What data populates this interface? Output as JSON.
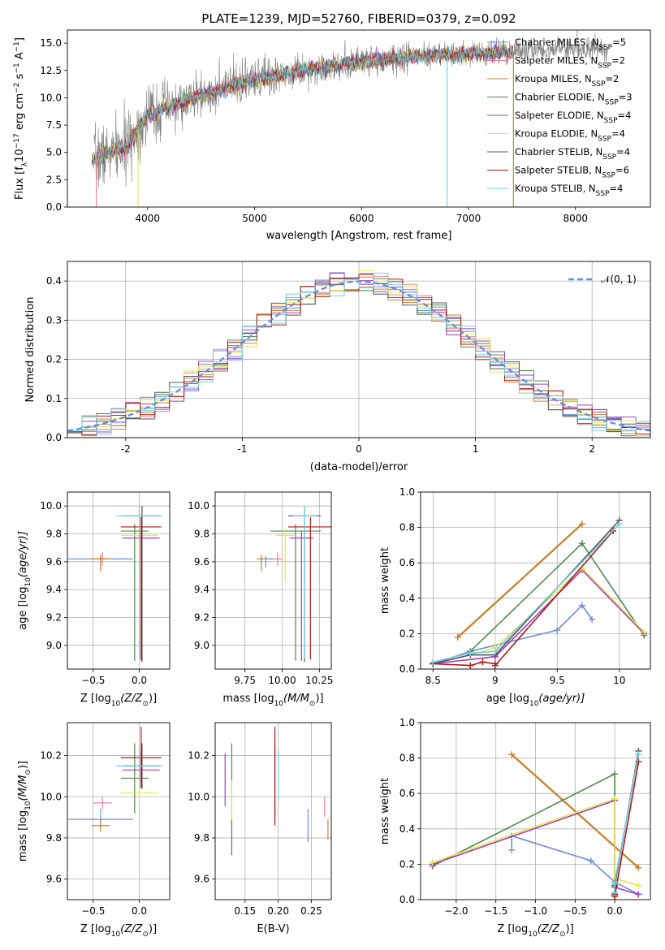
{
  "title": "PLATE=1239, MJD=52760, FIBERID=0379, z=0.092",
  "series": [
    {
      "name": "Chabrier MILES, N$_{SSP}$=5",
      "label_main": "Chabrier MILES, N",
      "label_sub": "SSP",
      "label_tail": "=5",
      "color": "#6b8ed6"
    },
    {
      "name": "Salpeter MILES, N$_{SSP}$=2",
      "label_main": "Salpeter MILES, N",
      "label_sub": "SSP",
      "label_tail": "=2",
      "color": "#f27f9a"
    },
    {
      "name": "Kroupa MILES, N$_{SSP}$=2",
      "label_main": "Kroupa MILES, N",
      "label_sub": "SSP",
      "label_tail": "=2",
      "color": "#c8842c"
    },
    {
      "name": "Chabrier ELODIE, N$_{SSP}$=3",
      "label_main": "Chabrier ELODIE, N",
      "label_sub": "SSP",
      "label_tail": "=3",
      "color": "#4d8a4d"
    },
    {
      "name": "Salpeter ELODIE, N$_{SSP}$=4",
      "label_main": "Salpeter ELODIE, N",
      "label_sub": "SSP",
      "label_tail": "=4",
      "color": "#a23cc4"
    },
    {
      "name": "Kroupa ELODIE, N$_{SSP}$=4",
      "label_main": "Kroupa ELODIE, N",
      "label_sub": "SSP",
      "label_tail": "=4",
      "color": "#e6e650"
    },
    {
      "name": "Chabrier STELIB, N$_{SSP}$=4",
      "label_main": "Chabrier STELIB, N",
      "label_sub": "SSP",
      "label_tail": "=4",
      "color": "#555555"
    },
    {
      "name": "Salpeter STELIB, N$_{SSP}$=6",
      "label_main": "Salpeter STELIB, N",
      "label_sub": "SSP",
      "label_tail": "=6",
      "color": "#b01818"
    },
    {
      "name": "Kroupa STELIB, N$_{SSP}$=4",
      "label_main": "Kroupa STELIB, N",
      "label_sub": "SSP",
      "label_tail": "=4",
      "color": "#6fd0e0"
    }
  ],
  "panel_spectrum": {
    "xlabel": "wavelength [Angstrom, rest frame]",
    "ylabel": "Flux [fλ10⁻¹⁷ erg cm⁻² s⁻¹ A⁻¹]",
    "ylabel_parts": {
      "a": "Flux [f",
      "b": "λ",
      "c": "10",
      "d": "−17",
      "e": " erg cm",
      "f": "−2",
      "g": " s",
      "h": "−1",
      "i": " A",
      "j": "−1",
      "k": "]"
    },
    "xlim": [
      3250,
      8700
    ],
    "ylim": [
      0,
      16.2
    ],
    "xticks": [
      4000,
      5000,
      6000,
      7000,
      8000
    ],
    "yticks": [
      0.0,
      2.5,
      5.0,
      7.5,
      10.0,
      12.5,
      15.0
    ],
    "data_color": "#808080",
    "data_x_range": [
      3500,
      8300
    ],
    "model_x_range": [
      3480,
      7420
    ],
    "continuum_anchors": [
      [
        3480,
        4.4
      ],
      [
        3800,
        5.5
      ],
      [
        4000,
        8.5
      ],
      [
        4500,
        10.2
      ],
      [
        5000,
        11.6
      ],
      [
        5500,
        12.6
      ],
      [
        6000,
        13.3
      ],
      [
        6500,
        13.8
      ],
      [
        7000,
        14.0
      ],
      [
        7500,
        14.3
      ],
      [
        8000,
        14.6
      ],
      [
        8300,
        14.5
      ]
    ]
  },
  "panel_hist": {
    "xlabel": "(data-model)/error",
    "ylabel": "Normed distribution",
    "xlim": [
      -2.5,
      2.5
    ],
    "ylim": [
      0,
      0.45
    ],
    "xticks": [
      -2,
      -1,
      0,
      1,
      2
    ],
    "yticks": [
      0.0,
      0.1,
      0.2,
      0.3,
      0.4
    ],
    "grid": true,
    "bins": 40,
    "normal_label": "𝒩(0, 1)",
    "normal_color": "#6a8fd8"
  },
  "panel_age_Z": {
    "xlabel": "Z [log₁₀(Z/Z⊙)]",
    "xlabel_parts": {
      "a": "Z [log",
      "b": "10",
      "c": "(Z/Z",
      "d": "⊙",
      "e": ")]"
    },
    "ylabel": "age  [log₁₀(age/yr)]",
    "ylabel_parts": {
      "a": "age  [log",
      "b": "10",
      "c": "(age/yr)]"
    },
    "xlim": [
      -0.78,
      0.33
    ],
    "ylim": [
      8.83,
      10.1
    ],
    "xticks": [
      -0.5,
      0.0
    ],
    "xtick_labels": [
      "−0.5",
      "0.0"
    ],
    "yticks": [
      9.0,
      9.2,
      9.4,
      9.6,
      9.8,
      10.0
    ],
    "grid": true
  },
  "panel_age_mass": {
    "xlabel": "mass [log₁₀(M/M⊙)]",
    "xlabel_parts": {
      "a": "mass [log",
      "b": "10",
      "c": "(M/M",
      "d": "⊙",
      "e": ")]"
    },
    "xlim": [
      9.55,
      10.33
    ],
    "ylim": [
      8.83,
      10.1
    ],
    "xticks": [
      9.75,
      10.0,
      10.25
    ],
    "xtick_labels": [
      "9.75",
      "10.00",
      "10.25"
    ],
    "yticks": [
      9.0,
      9.2,
      9.4,
      9.6,
      9.8,
      10.0
    ],
    "grid": true
  },
  "panel_mw_age": {
    "xlabel": "age  [log₁₀(age/yr)]",
    "xlabel_parts": {
      "a": "age  [log",
      "b": "10",
      "c": "(age/yr)]"
    },
    "ylabel": "mass weight",
    "xlim": [
      8.4,
      10.25
    ],
    "ylim": [
      0,
      1.0
    ],
    "xticks": [
      8.5,
      9.0,
      9.5,
      10.0
    ],
    "yticks": [
      0.0,
      0.2,
      0.4,
      0.6,
      0.8,
      1.0
    ],
    "grid": true
  },
  "panel_mass_Z": {
    "xlabel": "Z [log₁₀(Z/Z⊙)]",
    "xlabel_parts": {
      "a": "Z [log",
      "b": "10",
      "c": "(Z/Z",
      "d": "⊙",
      "e": ")]"
    },
    "ylabel": "mass [log₁₀(M/M⊙)]",
    "ylabel_parts": {
      "a": "mass [log",
      "b": "10",
      "c": "(M/M",
      "d": "⊙",
      "e": ")]"
    },
    "xlim": [
      -0.78,
      0.33
    ],
    "ylim": [
      9.5,
      10.36
    ],
    "xticks": [
      -0.5,
      0.0
    ],
    "xtick_labels": [
      "−0.5",
      "0.0"
    ],
    "yticks": [
      9.6,
      9.8,
      10.0,
      10.2
    ],
    "grid": true
  },
  "panel_mass_EBV": {
    "xlabel": "E(B-V)",
    "xlim": [
      0.105,
      0.28
    ],
    "ylim": [
      9.5,
      10.36
    ],
    "xticks": [
      0.15,
      0.2,
      0.25
    ],
    "xtick_labels": [
      "0.15",
      "0.20",
      "0.25"
    ],
    "yticks": [
      9.6,
      9.8,
      10.0,
      10.2
    ],
    "grid": true
  },
  "panel_mw_Z": {
    "xlabel": "Z [log₁₀(Z/Z⊙)]",
    "xlabel_parts": {
      "a": "Z [log",
      "b": "10",
      "c": "(Z/Z",
      "d": "⊙",
      "e": ")]"
    },
    "ylabel": "mass weight",
    "xlim": [
      -2.45,
      0.45
    ],
    "ylim": [
      0,
      1.0
    ],
    "xticks": [
      -2.0,
      -1.5,
      -1.0,
      -0.5,
      0.0
    ],
    "xtick_labels": [
      "−2.0",
      "−1.5",
      "−1.0",
      "−0.5",
      "0.0"
    ],
    "yticks": [
      0.0,
      0.2,
      0.4,
      0.6,
      0.8,
      1.0
    ],
    "grid": true
  },
  "chart_data": {
    "type": "scatter",
    "title": "PLATE=1239, MJD=52760, FIBERID=0379, z=0.092",
    "ssp_fits": [
      {
        "series": "Chabrier MILES",
        "age": [
          8.5,
          8.8,
          9.5,
          9.7,
          9.78
        ],
        "mass_weight": [
          0.03,
          0.1,
          0.22,
          0.36,
          0.28
        ],
        "Z": [
          0.3,
          0.0,
          -0.3,
          -1.3,
          -1.3
        ]
      },
      {
        "series": "Salpeter MILES",
        "age": [
          8.7,
          9.7
        ],
        "mass_weight": [
          0.18,
          0.82
        ],
        "Z": [
          0.3,
          -1.3
        ]
      },
      {
        "series": "Kroupa MILES",
        "age": [
          8.7,
          9.7
        ],
        "mass_weight": [
          0.18,
          0.82
        ],
        "Z": [
          0.3,
          -1.3
        ]
      },
      {
        "series": "Chabrier ELODIE",
        "age": [
          8.8,
          9.7,
          10.2
        ],
        "mass_weight": [
          0.1,
          0.71,
          0.19
        ],
        "Z": [
          0.0,
          0.0,
          -2.3
        ]
      },
      {
        "series": "Salpeter ELODIE",
        "age": [
          8.5,
          9.0,
          9.7,
          10.2
        ],
        "mass_weight": [
          0.03,
          0.07,
          0.56,
          0.2
        ],
        "Z": [
          0.3,
          0.0,
          0.0,
          -2.3
        ]
      },
      {
        "series": "Kroupa ELODIE",
        "age": [
          8.8,
          9.0,
          9.7,
          10.2
        ],
        "mass_weight": [
          0.08,
          0.12,
          0.57,
          0.21
        ],
        "Z": [
          0.3,
          0.0,
          0.0,
          -2.3
        ]
      },
      {
        "series": "Chabrier STELIB",
        "age": [
          8.5,
          8.8,
          9.0,
          10.0
        ],
        "mass_weight": [
          0.03,
          0.08,
          0.08,
          0.84
        ],
        "Z": [
          0.0,
          0.0,
          0.0,
          0.3
        ]
      },
      {
        "series": "Salpeter STELIB",
        "age": [
          8.5,
          8.8,
          8.9,
          9.0,
          9.0,
          9.95
        ],
        "mass_weight": [
          0.03,
          0.02,
          0.04,
          0.03,
          0.02,
          0.78
        ],
        "Z": [
          0.0,
          0.0,
          0.0,
          0.0,
          0.0,
          0.3
        ]
      },
      {
        "series": "Kroupa STELIB",
        "age": [
          8.5,
          8.8,
          9.0,
          10.0
        ],
        "mass_weight": [
          0.04,
          0.09,
          0.1,
          0.82
        ],
        "Z": [
          0.0,
          0.0,
          0.0,
          0.3
        ]
      }
    ],
    "average_properties": [
      {
        "series": "Chabrier MILES",
        "Z": -0.42,
        "Z_err": 0.35,
        "age": 9.62,
        "age_err": [
          0.06,
          0.02
        ],
        "mass": 9.89,
        "mass_err": 0.05,
        "ebv": 0.245,
        "ebv_err": 0.12
      },
      {
        "series": "Salpeter MILES",
        "Z": -0.4,
        "Z_err": 0.1,
        "age": 9.62,
        "age_err": [
          0.05,
          0.05
        ],
        "mass": 9.97,
        "mass_err": 0.03,
        "ebv": 0.27,
        "ebv_err": 0.15
      },
      {
        "series": "Kroupa MILES",
        "Z": -0.42,
        "Z_err": 0.1,
        "age": 9.62,
        "age_err": [
          0.09,
          0.03
        ],
        "mass": 9.86,
        "mass_err": 0.03,
        "ebv": 0.275,
        "ebv_err": 0.17
      },
      {
        "series": "Chabrier ELODIE",
        "Z": -0.05,
        "Z_err": 0.15,
        "age": 9.82,
        "age_err": [
          0.93,
          0.05
        ],
        "mass": 10.09,
        "mass_err": 0.17,
        "ebv": 0.13,
        "ebv_err": 0.35
      },
      {
        "series": "Salpeter ELODIE",
        "Z": 0.02,
        "Z_err": 0.2,
        "age": 9.77,
        "age_err": [
          0.88,
          0.05
        ],
        "mass": 10.13,
        "mass_err": 0.08,
        "ebv": 0.12,
        "ebv_err": 0.2
      },
      {
        "series": "Kroupa ELODIE",
        "Z": 0.0,
        "Z_err": 0.2,
        "age": 9.79,
        "age_err": [
          0.34,
          0.05
        ],
        "mass": 10.02,
        "mass_err": 0.06,
        "ebv": 0.13,
        "ebv_err": 0.16
      },
      {
        "series": "Chabrier STELIB",
        "Z": 0.03,
        "Z_err": 0.2,
        "age": 9.93,
        "age_err": [
          1.05,
          0.07
        ],
        "mass": 10.15,
        "mass_err": 0.11,
        "ebv": 0.195,
        "ebv_err": 0.33
      },
      {
        "series": "Salpeter STELIB",
        "Z": 0.02,
        "Z_err": 0.22,
        "age": 9.85,
        "age_err": [
          0.95,
          0.07
        ],
        "mass": 10.19,
        "mass_err": 0.15,
        "ebv": 0.195,
        "ebv_err": 0.43
      },
      {
        "series": "Kroupa STELIB",
        "Z": 0.0,
        "Z_err": 0.25,
        "age": 9.93,
        "age_err": [
          1.02,
          0.07
        ],
        "mass": 10.15,
        "mass_err": 0.08,
        "ebv": 0.2,
        "ebv_err": 0.32
      }
    ]
  }
}
